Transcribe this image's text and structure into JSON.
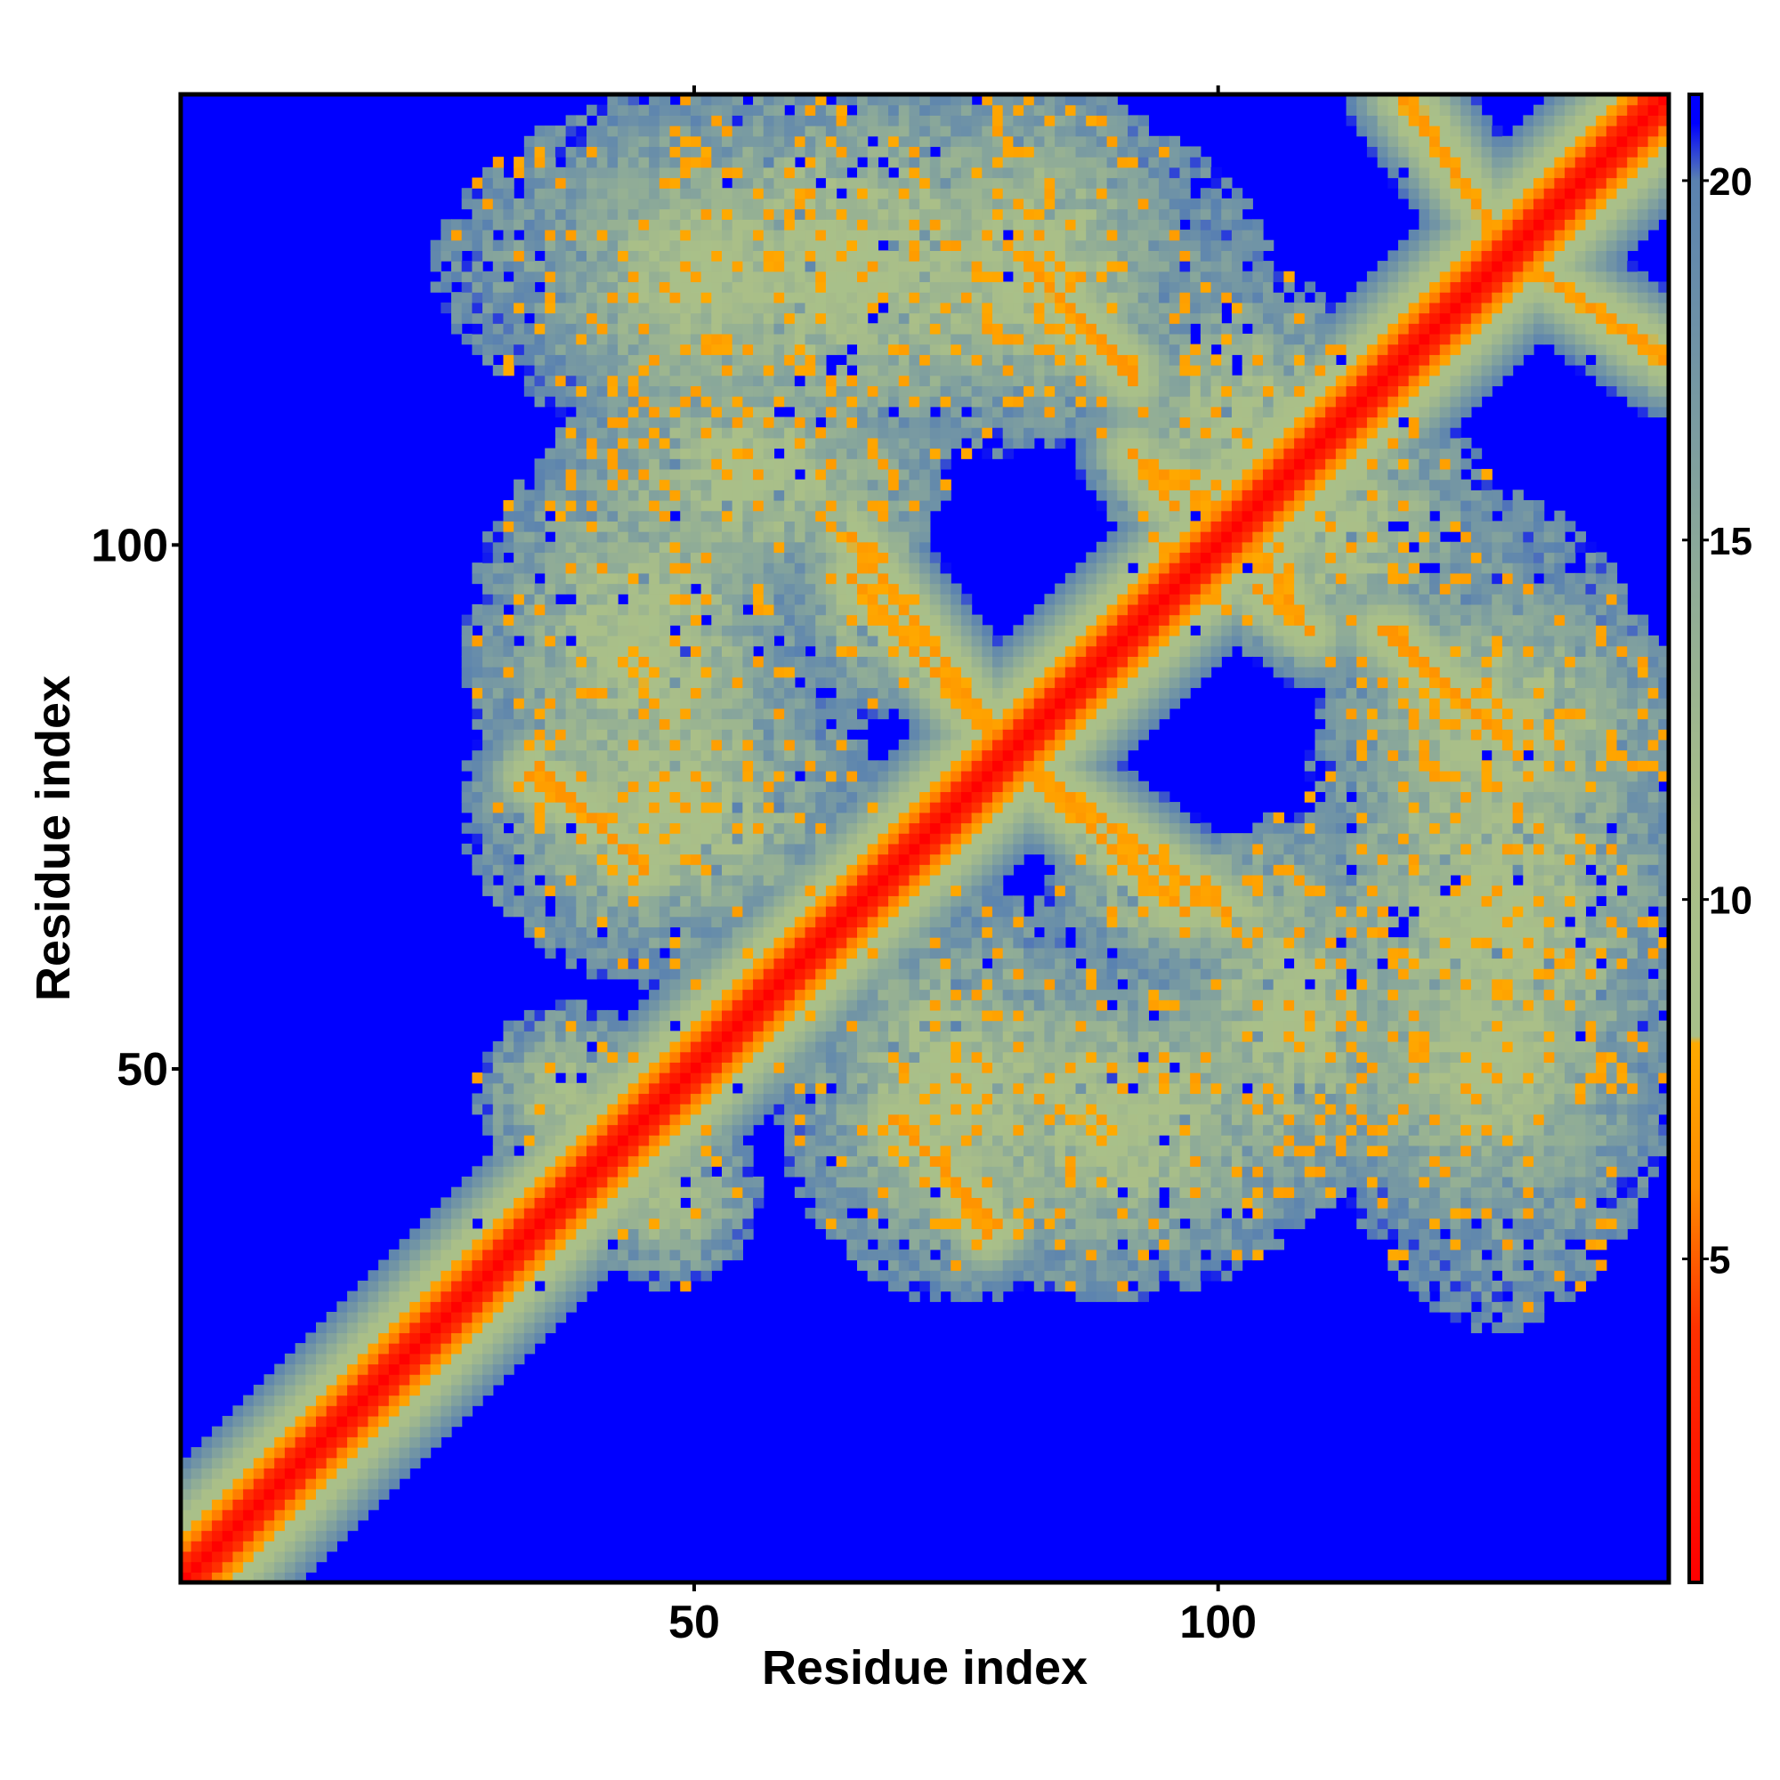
{
  "chart_data": {
    "type": "heatmap",
    "title": "",
    "xlabel": "Residue index",
    "ylabel": "Residue index",
    "n_residues": 143,
    "xlim": [
      1,
      143
    ],
    "ylim": [
      1,
      143
    ],
    "x_ticks": [
      50,
      100
    ],
    "x_tick_labels": [
      "50",
      "100"
    ],
    "y_ticks": [
      50,
      100
    ],
    "y_tick_labels": [
      "50",
      "100"
    ],
    "grid": false,
    "colorbar": {
      "placement": "right",
      "range": [
        0.5,
        21.2
      ],
      "ticks": [
        5,
        10,
        15,
        20
      ],
      "tick_labels": [
        "5",
        "10",
        "15",
        "20"
      ],
      "stops": [
        {
          "value": 0.5,
          "color": "#ff0000"
        },
        {
          "value": 4.0,
          "color": "#ff3000"
        },
        {
          "value": 6.0,
          "color": "#ff8c00"
        },
        {
          "value": 8.0,
          "color": "#ffaa00"
        },
        {
          "value": 8.1,
          "color": "#a8c08a"
        },
        {
          "value": 11.0,
          "color": "#aabf88"
        },
        {
          "value": 15.0,
          "color": "#8aa89a"
        },
        {
          "value": 20.0,
          "color": "#5a82b0"
        },
        {
          "value": 20.8,
          "color": "#0000ff"
        }
      ]
    },
    "colors": {
      "background_far": "#0000ff",
      "diagonal": "#ff0000",
      "close_contact": "#ff9900",
      "mid_distance": "#a8bf8c",
      "far_edge": "#6b8fb0"
    },
    "features": [
      {
        "kind": "diagonal",
        "from": 1,
        "to": 143
      },
      {
        "kind": "parallel_band",
        "x": [
          1,
          60
        ],
        "y": [
          1,
          60
        ],
        "width": 8
      },
      {
        "kind": "antiparallel_strand",
        "x": [
          65,
          79
        ],
        "y": [
          101,
          82
        ]
      },
      {
        "kind": "antiparallel_strand",
        "x": [
          80,
          97
        ],
        "y": [
          80,
          65
        ]
      },
      {
        "kind": "antiparallel_strand",
        "x": [
          83,
          92
        ],
        "y": [
          126,
          117
        ]
      },
      {
        "kind": "antiparallel_strand",
        "x": [
          118,
          127
        ],
        "y": [
          144,
          130
        ]
      },
      {
        "kind": "antiparallel_strand",
        "x": [
          129,
          143
        ],
        "y": [
          128,
          118
        ]
      },
      {
        "kind": "antiparallel_strand",
        "x": [
          116,
          126
        ],
        "y": [
          92,
          83
        ]
      },
      {
        "kind": "antiparallel_strand",
        "x": [
          69,
          79
        ],
        "y": [
          45,
          35
        ]
      },
      {
        "kind": "antiparallel_strand",
        "x": [
          34,
          40
        ],
        "y": [
          78,
          74
        ]
      },
      {
        "kind": "antiparallel_strand",
        "x": [
          95,
          100
        ],
        "y": [
          107,
          104
        ]
      },
      {
        "kind": "antiparallel_strand",
        "x": [
          104,
          109
        ],
        "y": [
          96,
          92
        ]
      },
      {
        "kind": "contact_patch",
        "x": [
          30,
          65
        ],
        "y": [
          60,
          90
        ]
      },
      {
        "kind": "contact_patch",
        "x": [
          70,
          110
        ],
        "y": [
          30,
          60
        ]
      },
      {
        "kind": "contact_patch",
        "x": [
          30,
          100
        ],
        "y": [
          110,
          144
        ]
      },
      {
        "kind": "contact_patch",
        "x": [
          38,
          72
        ],
        "y": [
          96,
          118
        ]
      },
      {
        "kind": "contact_patch",
        "x": [
          90,
          115
        ],
        "y": [
          96,
          125
        ]
      },
      {
        "kind": "contact_patch",
        "x": [
          112,
          143
        ],
        "y": [
          70,
          96
        ]
      },
      {
        "kind": "contact_patch",
        "x": [
          112,
          140
        ],
        "y": [
          37,
          62
        ]
      },
      {
        "kind": "contact_patch",
        "x": [
          85,
          112
        ],
        "y": [
          60,
          72
        ]
      },
      {
        "kind": "contact_patch",
        "x": [
          30,
          46
        ],
        "y": [
          40,
          55
        ]
      }
    ]
  }
}
